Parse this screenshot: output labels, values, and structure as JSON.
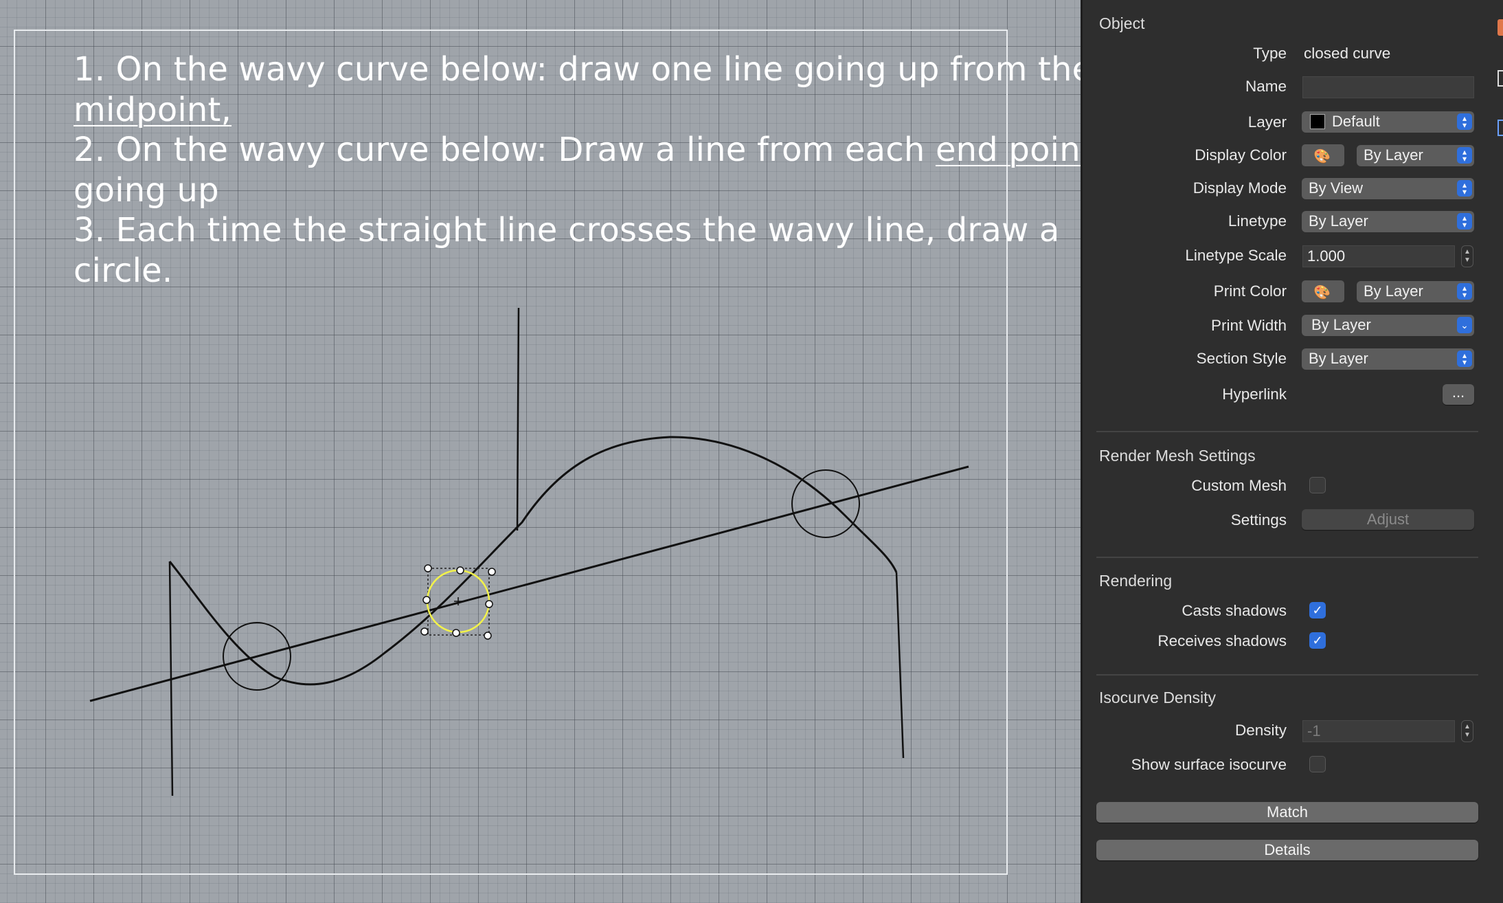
{
  "instructions": {
    "line1_text": "1. On the wavy curve below: draw one line going up from the",
    "line2_link": "midpoint,",
    "line3_text": "2. On the wavy curve below: Draw a line from each ",
    "line3_link": "end point",
    "line4_text": "going up",
    "line5_text": "3. Each time the straight line crosses the wavy line, draw a",
    "line6_text": "circle."
  },
  "panel": {
    "object_section": "Object",
    "type": {
      "label": "Type",
      "value": "closed curve"
    },
    "name": {
      "label": "Name",
      "value": ""
    },
    "layer": {
      "label": "Layer",
      "value": "Default"
    },
    "display_color": {
      "label": "Display Color",
      "value": "By Layer"
    },
    "display_mode": {
      "label": "Display Mode",
      "value": "By View"
    },
    "linetype": {
      "label": "Linetype",
      "value": "By Layer"
    },
    "linetype_scale": {
      "label": "Linetype Scale",
      "value": "1.000"
    },
    "print_color": {
      "label": "Print Color",
      "value": "By Layer"
    },
    "print_width": {
      "label": "Print Width",
      "value": "By Layer"
    },
    "section_style": {
      "label": "Section Style",
      "value": "By Layer"
    },
    "hyperlink": {
      "label": "Hyperlink",
      "button": "..."
    },
    "render_mesh_section": "Render Mesh Settings",
    "custom_mesh": {
      "label": "Custom Mesh",
      "checked": false
    },
    "settings": {
      "label": "Settings",
      "button": "Adjust"
    },
    "rendering_section": "Rendering",
    "casts_shadows": {
      "label": "Casts shadows",
      "checked": true
    },
    "receives_shadows": {
      "label": "Receives shadows",
      "checked": true
    },
    "isocurve_section": "Isocurve Density",
    "density": {
      "label": "Density",
      "value": "-1"
    },
    "show_surface_isocurve": {
      "label": "Show surface isocurve",
      "checked": false
    },
    "match_button": "Match",
    "details_button": "Details"
  },
  "colors": {
    "accent": "#2f6fdc",
    "panel_bg": "#2e2e2e",
    "viewport_bg": "#9fa4aa",
    "selection": "#f2f24a"
  },
  "icons": {
    "display_color": "color-swatch-icon",
    "print_color": "color-swatch-icon",
    "select_arrows": "updown-chevron-icon"
  }
}
